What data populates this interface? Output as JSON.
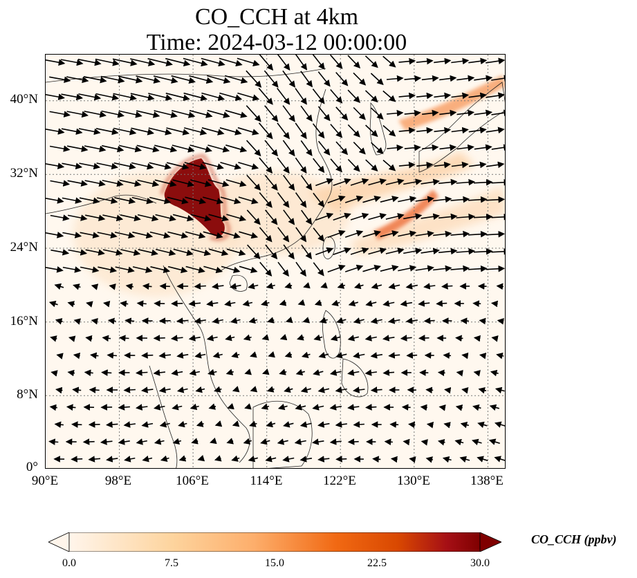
{
  "title": {
    "line1": "CO_CCH at 4km",
    "line2": "Time: 2024-03-12 00:00:00"
  },
  "map": {
    "extent": {
      "lon_min": 90,
      "lon_max": 140,
      "lat_min": 0,
      "lat_max": 45
    },
    "lat_ticks": [
      0,
      8,
      16,
      24,
      32,
      40
    ],
    "lat_labels": [
      "0°",
      "8°N",
      "16°N",
      "24°N",
      "32°N",
      "40°N"
    ],
    "lon_ticks": [
      90,
      98,
      106,
      114,
      122,
      130,
      138
    ],
    "lon_labels": [
      "90°E",
      "98°E",
      "106°E",
      "114°E",
      "122°E",
      "130°E",
      "138°E"
    ],
    "gridline_style": "dotted",
    "field_variable": "CO_CCH",
    "overlay": "wind-vectors"
  },
  "colorbar": {
    "label": "CO_CCH (ppbv)",
    "ticks": [
      "0.0",
      "7.5",
      "15.0",
      "22.5",
      "30.0"
    ],
    "min": 0,
    "max": 30,
    "colormap": [
      "#fff5eb",
      "#fdd49e",
      "#fdae6b",
      "#f16913",
      "#d94801",
      "#a50f15",
      "#7f0000"
    ],
    "extend": "both"
  }
}
